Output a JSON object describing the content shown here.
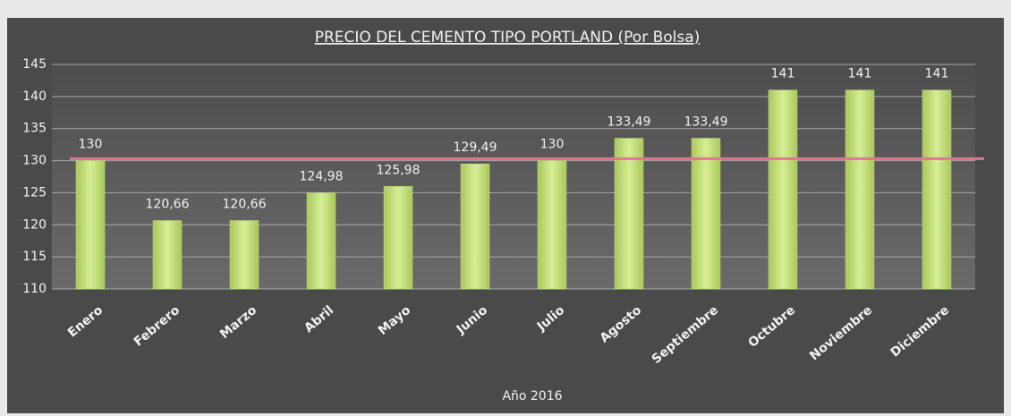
{
  "chart_data": {
    "type": "bar",
    "title": "PRECIO DEL CEMENTO  TIPO PORTLAND (Por Bolsa)",
    "x_label": "Año 2016",
    "categories": [
      "Enero",
      "Febrero",
      "Marzo",
      "Abril",
      "Mayo",
      "Junio",
      "Julio",
      "Agosto",
      "Septiembre",
      "Octubre",
      "Noviembre",
      "Diciembre"
    ],
    "values": [
      130,
      120.66,
      120.66,
      124.98,
      125.98,
      129.49,
      130,
      133.49,
      133.49,
      141,
      141,
      141
    ],
    "value_labels": [
      "130",
      "120,66",
      "120,66",
      "124,98",
      "125,98",
      "129,49",
      "130",
      "133,49",
      "133,49",
      "141",
      "141",
      "141"
    ],
    "color": "#c4df7c",
    "reference_line": {
      "value": 130.3,
      "color": "#d97a90"
    },
    "ylim": [
      110,
      145
    ],
    "yticks": [
      110,
      115,
      120,
      125,
      130,
      135,
      140,
      145
    ],
    "grid": true
  }
}
